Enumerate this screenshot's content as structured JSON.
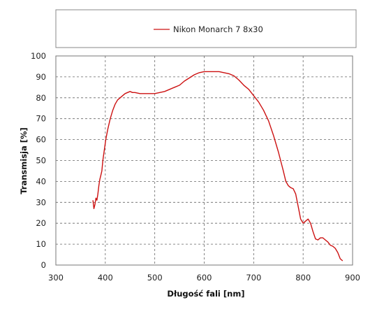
{
  "chart_data": {
    "type": "line",
    "xlabel": "Długość fali [nm]",
    "ylabel": "Transmisja [%]",
    "xlim": [
      300,
      900
    ],
    "ylim": [
      0,
      100
    ],
    "xticks": [
      300,
      400,
      500,
      600,
      700,
      800,
      900
    ],
    "yticks": [
      0,
      10,
      20,
      30,
      40,
      50,
      60,
      70,
      80,
      90,
      100
    ],
    "grid": true,
    "legend_position": "top",
    "series": [
      {
        "name": "Nikon Monarch 7 8x30",
        "color": "#cc1111",
        "x": [
          375,
          377,
          379,
          381,
          383,
          385,
          387,
          389,
          391,
          393,
          395,
          398,
          401,
          405,
          410,
          415,
          420,
          425,
          430,
          435,
          440,
          445,
          450,
          455,
          460,
          470,
          480,
          490,
          500,
          510,
          520,
          530,
          540,
          550,
          560,
          570,
          580,
          590,
          600,
          610,
          620,
          630,
          640,
          650,
          660,
          670,
          680,
          690,
          700,
          710,
          720,
          730,
          740,
          750,
          760,
          765,
          770,
          775,
          780,
          785,
          790,
          795,
          800,
          805,
          810,
          815,
          820,
          825,
          830,
          835,
          840,
          845,
          850,
          855,
          860,
          865,
          870,
          875,
          880
        ],
        "y": [
          31,
          27,
          29,
          32,
          31,
          34,
          38,
          41,
          43,
          45,
          50,
          55,
          60,
          65,
          70,
          74,
          77,
          79,
          80,
          81,
          82,
          82.5,
          83,
          82.5,
          82.5,
          82,
          82,
          82,
          82,
          82.5,
          83,
          84,
          85,
          86,
          88,
          89.5,
          91,
          92,
          92.5,
          92.5,
          92.5,
          92.5,
          92,
          91.5,
          90.5,
          88.5,
          86,
          84,
          81,
          78,
          74,
          69,
          62,
          54,
          45,
          40,
          38,
          37,
          36.5,
          34,
          28,
          22,
          20,
          21,
          22,
          20,
          16,
          12.5,
          12,
          13,
          13,
          12,
          11,
          9.5,
          9,
          8,
          6,
          3,
          2
        ]
      }
    ]
  }
}
